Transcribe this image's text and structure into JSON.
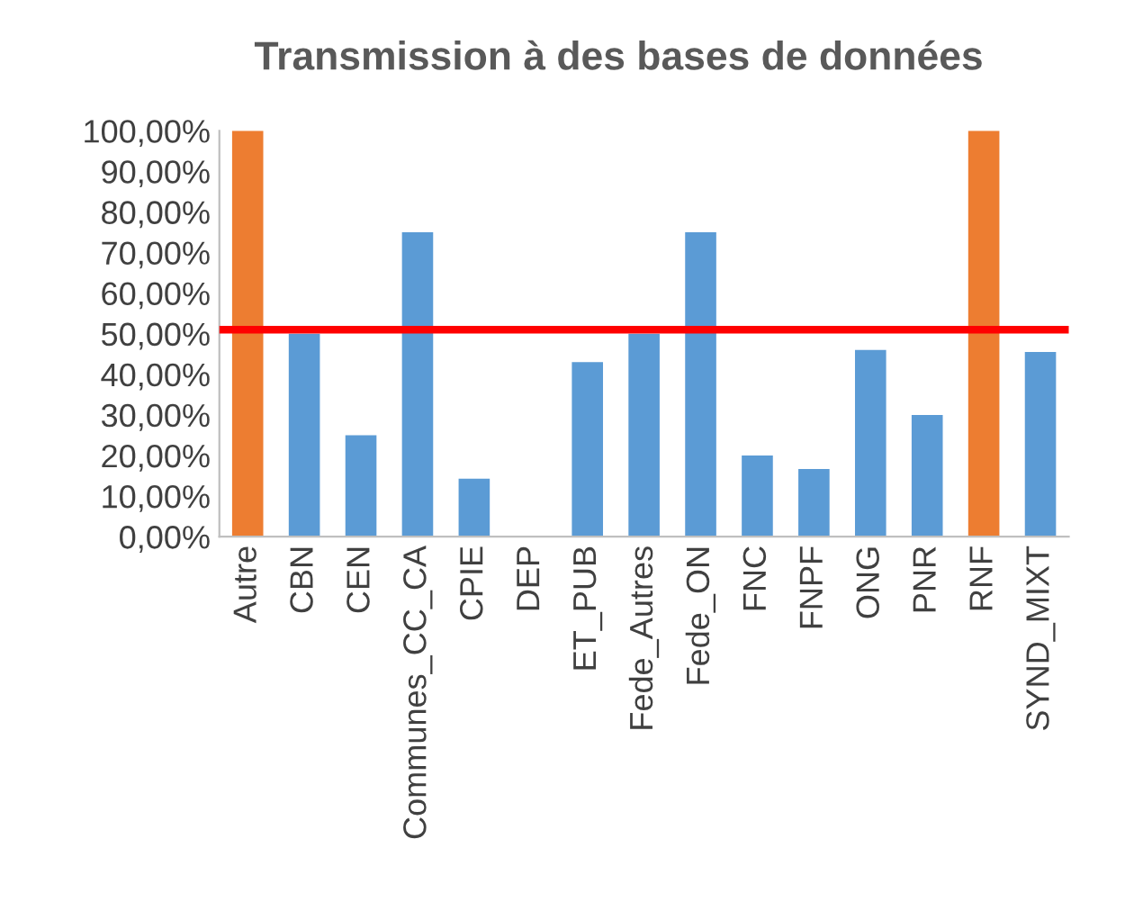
{
  "chart_data": {
    "type": "bar",
    "title": "Transmission à des bases de données",
    "categories": [
      "Autre",
      "CBN",
      "CEN",
      "Communes_CC_CA",
      "CPIE",
      "DEP",
      "ET_PUB",
      "Fede_Autres",
      "Fede_ON",
      "FNC",
      "FNPF",
      "ONG",
      "PNR",
      "RNF",
      "SYND_MIXT"
    ],
    "values": [
      100,
      50,
      25,
      75,
      14.3,
      0,
      43,
      50,
      75,
      20,
      16.7,
      46,
      30,
      100,
      45.5
    ],
    "colors": [
      "#ed7d31",
      "#5b9bd5",
      "#5b9bd5",
      "#5b9bd5",
      "#5b9bd5",
      "#5b9bd5",
      "#5b9bd5",
      "#5b9bd5",
      "#5b9bd5",
      "#5b9bd5",
      "#5b9bd5",
      "#5b9bd5",
      "#5b9bd5",
      "#ed7d31",
      "#5b9bd5"
    ],
    "ylim": [
      0,
      100
    ],
    "yticks": [
      {
        "value": 0,
        "label": "0,00%"
      },
      {
        "value": 10,
        "label": "10,00%"
      },
      {
        "value": 20,
        "label": "20,00%"
      },
      {
        "value": 30,
        "label": "30,00%"
      },
      {
        "value": 40,
        "label": "40,00%"
      },
      {
        "value": 50,
        "label": "50,00%"
      },
      {
        "value": 60,
        "label": "60,00%"
      },
      {
        "value": 70,
        "label": "70,00%"
      },
      {
        "value": 80,
        "label": "80,00%"
      },
      {
        "value": 90,
        "label": "90,00%"
      },
      {
        "value": 100,
        "label": "100,00%"
      }
    ],
    "ref_lines": [
      {
        "axis": "y",
        "value": 51,
        "color": "#ff0000"
      }
    ],
    "grid": false
  }
}
